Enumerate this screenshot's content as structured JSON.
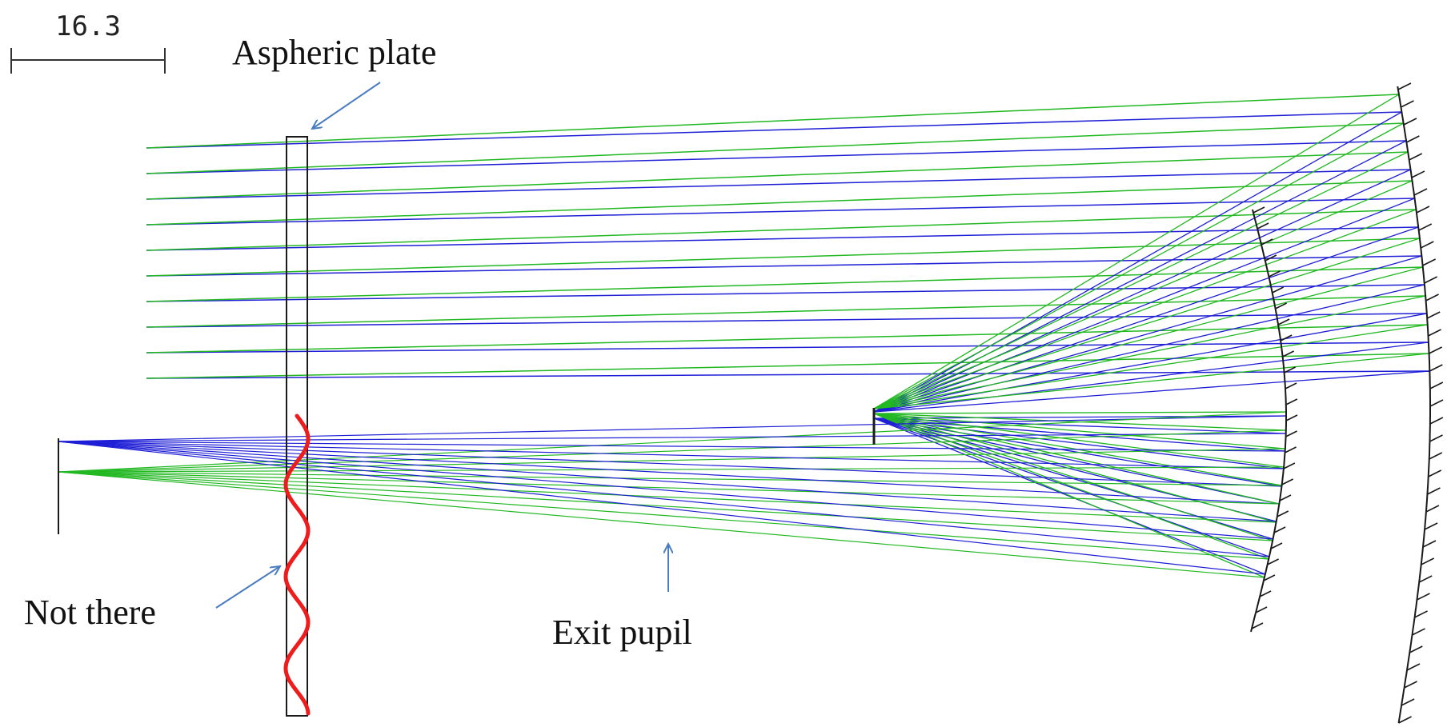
{
  "scale_bar": {
    "label": "16.3"
  },
  "labels": {
    "aspheric_plate": "Aspheric plate",
    "not_there": "Not there",
    "exit_pupil": "Exit pupil"
  },
  "colors": {
    "ray_blue": "#1f1fd6",
    "ray_green": "#22b822",
    "wave": "#ee1c1c",
    "annotation_arrow": "#4a7cc0",
    "structure": "#1a1a1a"
  }
}
